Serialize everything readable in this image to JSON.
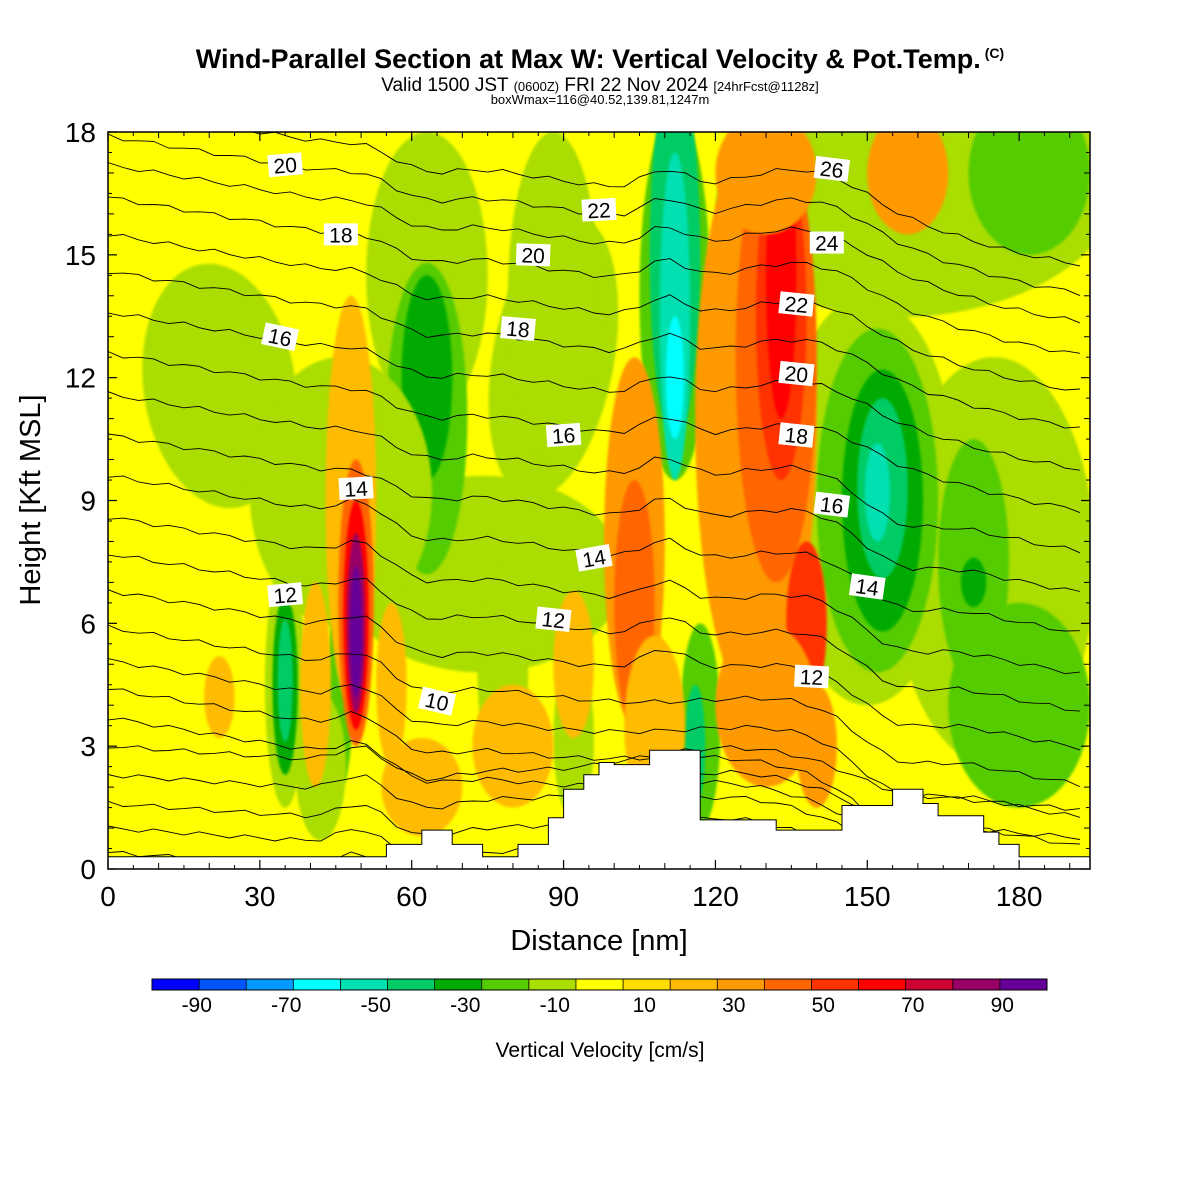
{
  "header": {
    "title": "Wind-Parallel Section at Max W: Vertical Velocity & Pot.Temp.",
    "copyright": "(C)",
    "valid_prefix": "Valid 1500 JST",
    "valid_utc": "(0600Z)",
    "valid_date": "FRI 22 Nov 2024",
    "forecast": "[24hrFcst@1128z]",
    "box_info": "boxWmax=116@40.52,139.81,1247m"
  },
  "chart_data": {
    "type": "heatmap",
    "xlabel": "Distance [nm]",
    "ylabel": "Height [Kft MSL]",
    "xlim": [
      0,
      194
    ],
    "ylim": [
      0,
      18
    ],
    "x_ticks": [
      "0",
      "30",
      "60",
      "90",
      "120",
      "150",
      "180"
    ],
    "y_ticks": [
      "0",
      "3",
      "6",
      "9",
      "12",
      "15",
      "18"
    ],
    "colorbar": {
      "label": "Vertical Velocity [cm/s]",
      "tick_labels": [
        "-90",
        "-70",
        "-50",
        "-30",
        "-10",
        "10",
        "30",
        "50",
        "70",
        "90"
      ],
      "tick_values": [
        -90,
        -70,
        -50,
        -30,
        -10,
        10,
        30,
        50,
        70,
        90
      ],
      "bounds": [
        -100,
        100
      ],
      "colors": [
        "#0000ff",
        "#0055ff",
        "#0099ff",
        "#00ffff",
        "#00e0b0",
        "#00cc66",
        "#00aa00",
        "#55cc00",
        "#aadd00",
        "#ffff00",
        "#ffdd00",
        "#ffbb00",
        "#ff9900",
        "#ff6600",
        "#ff3300",
        "#ff0000",
        "#cc0033",
        "#990066",
        "#660099"
      ]
    },
    "terrain": [
      [
        0,
        0.3
      ],
      [
        55,
        0.3
      ],
      [
        55,
        0.6
      ],
      [
        62,
        0.6
      ],
      [
        62,
        0.95
      ],
      [
        68,
        0.95
      ],
      [
        68,
        0.6
      ],
      [
        74,
        0.6
      ],
      [
        74,
        0.3
      ],
      [
        81,
        0.3
      ],
      [
        81,
        0.6
      ],
      [
        87,
        0.6
      ],
      [
        87,
        1.25
      ],
      [
        90,
        1.25
      ],
      [
        90,
        1.95
      ],
      [
        94,
        1.95
      ],
      [
        94,
        2.3
      ],
      [
        97,
        2.3
      ],
      [
        97,
        2.6
      ],
      [
        100,
        2.6
      ],
      [
        100,
        2.55
      ],
      [
        107,
        2.55
      ],
      [
        107,
        2.9
      ],
      [
        117,
        2.9
      ],
      [
        117,
        1.2
      ],
      [
        132,
        1.2
      ],
      [
        132,
        0.95
      ],
      [
        145,
        0.95
      ],
      [
        145,
        1.55
      ],
      [
        155,
        1.55
      ],
      [
        155,
        1.95
      ],
      [
        161,
        1.95
      ],
      [
        161,
        1.6
      ],
      [
        164,
        1.6
      ],
      [
        164,
        1.3
      ],
      [
        173,
        1.3
      ],
      [
        173,
        0.9
      ],
      [
        176,
        0.9
      ],
      [
        176,
        0.6
      ],
      [
        180,
        0.6
      ],
      [
        180,
        0.3
      ],
      [
        194,
        0.3
      ]
    ],
    "theta_labels": [
      {
        "text": "20",
        "x": 35,
        "y": 17.2
      },
      {
        "text": "18",
        "x": 46,
        "y": 15.5
      },
      {
        "text": "16",
        "x": 34,
        "y": 13.0
      },
      {
        "text": "22",
        "x": 97,
        "y": 16.1
      },
      {
        "text": "20",
        "x": 84,
        "y": 15.0
      },
      {
        "text": "18",
        "x": 81,
        "y": 13.2
      },
      {
        "text": "16",
        "x": 90,
        "y": 10.6
      },
      {
        "text": "14",
        "x": 49,
        "y": 9.3
      },
      {
        "text": "14",
        "x": 96,
        "y": 7.6
      },
      {
        "text": "12",
        "x": 35,
        "y": 6.7
      },
      {
        "text": "12",
        "x": 88,
        "y": 6.1
      },
      {
        "text": "10",
        "x": 65,
        "y": 4.1
      },
      {
        "text": "26",
        "x": 143,
        "y": 17.1
      },
      {
        "text": "24",
        "x": 142,
        "y": 15.3
      },
      {
        "text": "22",
        "x": 136,
        "y": 13.8
      },
      {
        "text": "20",
        "x": 136,
        "y": 12.1
      },
      {
        "text": "18",
        "x": 136,
        "y": 10.6
      },
      {
        "text": "16",
        "x": 143,
        "y": 8.9
      },
      {
        "text": "14",
        "x": 150,
        "y": 6.9
      },
      {
        "text": "12",
        "x": 139,
        "y": 4.7
      }
    ]
  }
}
